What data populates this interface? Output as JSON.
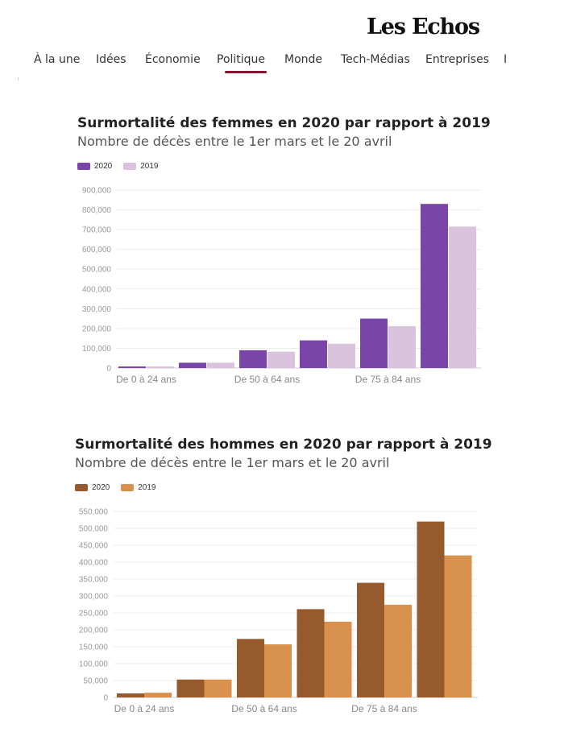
{
  "header": {
    "logo": "Les Echos",
    "nav": [
      {
        "label": "À la une",
        "active": false
      },
      {
        "label": "Idées",
        "active": false
      },
      {
        "label": "Économie",
        "active": false
      },
      {
        "label": "Politique",
        "active": true
      },
      {
        "label": "Monde",
        "active": false
      },
      {
        "label": "Tech-Médias",
        "active": false
      },
      {
        "label": "Entreprises",
        "active": false
      },
      {
        "label": "I",
        "active": false
      }
    ]
  },
  "chart_data": [
    {
      "type": "bar",
      "title": "Surmortalité des femmes en 2020 par rapport à 2019",
      "subtitle": "Nombre de décès entre le 1er mars et le 20 avril",
      "categories": [
        "De 0 à 24 ans",
        "",
        "De 50 à 64 ans",
        "",
        "De 75 à 84 ans",
        ""
      ],
      "series": [
        {
          "name": "2020",
          "color": "#7a45a8",
          "values": [
            8000,
            27000,
            90000,
            140000,
            250000,
            830000
          ]
        },
        {
          "name": "2019",
          "color": "#d9c3dd",
          "values": [
            8000,
            27000,
            83000,
            123000,
            212000,
            715000
          ]
        }
      ],
      "ylim": [
        0,
        900000
      ],
      "yticks": [
        "0",
        "100,000",
        "200,000",
        "300,000",
        "400,000",
        "500,000",
        "600,000",
        "700,000",
        "800,000",
        "900,000"
      ],
      "legend": "top-left",
      "grid": true
    },
    {
      "type": "bar",
      "title": "Surmortalité des hommes en 2020 par rapport à 2019",
      "subtitle": "Nombre de décès entre le 1er mars et le 20 avril",
      "categories": [
        "De 0 à 24 ans",
        "",
        "De 50 à 64 ans",
        "",
        "De 75 à 84 ans",
        ""
      ],
      "series": [
        {
          "name": "2020",
          "color": "#965a2c",
          "values": [
            12000,
            53000,
            173000,
            261000,
            339000,
            520000
          ]
        },
        {
          "name": "2019",
          "color": "#d8924d",
          "values": [
            14000,
            53000,
            157000,
            224000,
            274000,
            420000
          ]
        }
      ],
      "ylim": [
        0,
        550000
      ],
      "yticks": [
        "0",
        "50,000",
        "100,000",
        "150,000",
        "200,000",
        "250,000",
        "300,000",
        "350,000",
        "400,000",
        "450,000",
        "500,000",
        "550,000"
      ],
      "legend": "top-left",
      "grid": true
    }
  ]
}
